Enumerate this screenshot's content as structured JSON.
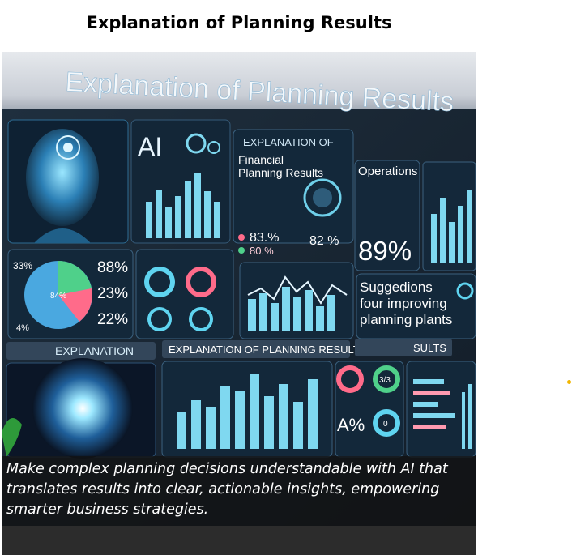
{
  "page": {
    "title": "Explanation of Planning Results",
    "caption": "Make complex planning decisions understandable with AI that translates results into clear, actionable insights, empowering smarter business strategies."
  },
  "illustration": {
    "headline": "Explanation of Planning Results",
    "ai_label": "AI",
    "panel_header": "EXPLANATION OF",
    "financial_title_1": "Financial",
    "financial_title_2": "Planning Results",
    "operations_title": "Operations",
    "stat_a": "83.%",
    "stat_b": "80.%",
    "stat_c": "82 %",
    "big_percent": "89%",
    "pie_left_label": "33%",
    "pie_bottom_label": "4%",
    "pie_inner_label": "84%",
    "pct_1": "88%",
    "pct_2": "23%",
    "pct_3": "22%",
    "suggestions_1": "Suggedions",
    "suggestions_2": "four improving",
    "suggestions_3": "planning plants",
    "explanation_tab": "EXPLANATION",
    "results_tab": "EXPLANATION OF PLANNING RESULTS",
    "sults_tab": "SULTS",
    "grade_label": "A%",
    "ring_label_1": "3/3",
    "ring_label_2": "0"
  },
  "colors": {
    "neon_cyan": "#5fd4f0",
    "chart_blue": "#7fd8f0",
    "highlight_pink": "#ff6b8a",
    "pie_green": "#4fd08a",
    "accent_yellow": "#f2b600"
  }
}
